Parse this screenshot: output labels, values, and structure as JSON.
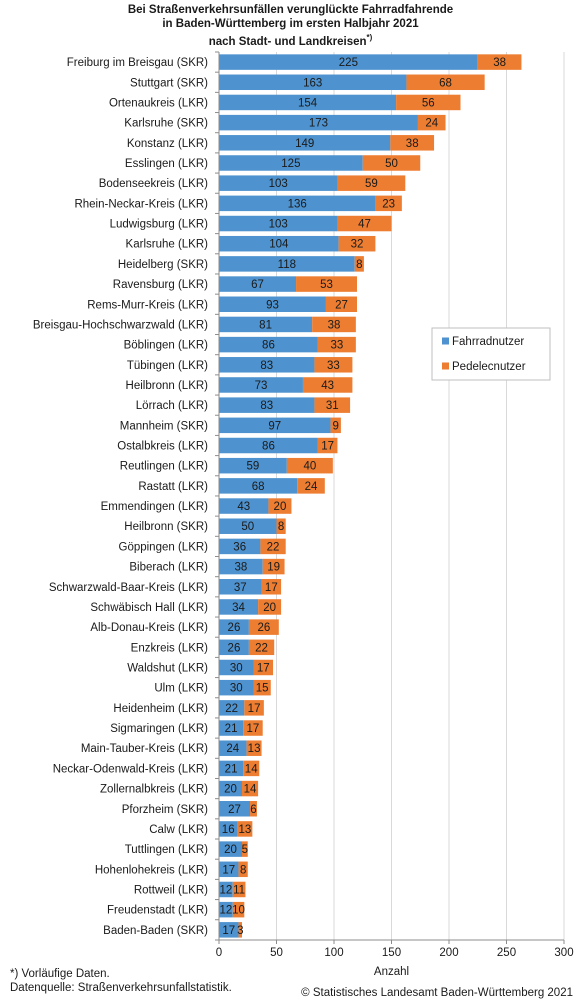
{
  "header": {
    "title_lines": [
      "Bei Straßenverkehrsunfällen verunglückte Fahrradfahrende",
      "in Baden-Württemberg im ersten Halbjahr 2021",
      "nach Stadt- und Landkreisen"
    ],
    "title_marker": "*)"
  },
  "footer": {
    "note": "*) Vorläufige Daten.",
    "source": "Datenquelle: Straßenverkehrsunfallstatistik.",
    "copyright": "© Statistisches Landesamt Baden-Württemberg 2021"
  },
  "colors": {
    "fahrrad": "#4e93cf",
    "pedelec": "#ed7d31",
    "grid": "#d9d9d9",
    "axis": "#8c8c8c",
    "text": "#1a1a1a"
  },
  "chart_data": {
    "type": "bar",
    "orientation": "horizontal",
    "stacked": true,
    "categories": [
      "Freiburg im Breisgau (SKR)",
      "Stuttgart (SKR)",
      "Ortenaukreis (LKR)",
      "Karlsruhe (SKR)",
      "Konstanz (LKR)",
      "Esslingen (LKR)",
      "Bodenseekreis (LKR)",
      "Rhein-Neckar-Kreis (LKR)",
      "Ludwigsburg (LKR)",
      "Karlsruhe (LKR)",
      "Heidelberg (SKR)",
      "Ravensburg (LKR)",
      "Rems-Murr-Kreis (LKR)",
      "Breisgau-Hochschwarzwald (LKR)",
      "Böblingen (LKR)",
      "Tübingen (LKR)",
      "Heilbronn (LKR)",
      "Lörrach (LKR)",
      "Mannheim (SKR)",
      "Ostalbkreis (LKR)",
      "Reutlingen (LKR)",
      "Rastatt (LKR)",
      "Emmendingen (LKR)",
      "Heilbronn (SKR)",
      "Göppingen (LKR)",
      "Biberach (LKR)",
      "Schwarzwald-Baar-Kreis (LKR)",
      "Schwäbisch Hall  (LKR)",
      "Alb-Donau-Kreis (LKR)",
      "Enzkreis (LKR)",
      "Waldshut (LKR)",
      "Ulm (LKR)",
      "Heidenheim (LKR)",
      "Sigmaringen (LKR)",
      "Main-Tauber-Kreis (LKR)",
      "Neckar-Odenwald-Kreis (LKR)",
      "Zollernalbkreis (LKR)",
      "Pforzheim (SKR)",
      "Calw (LKR)",
      "Tuttlingen (LKR)",
      "Hohenlohekreis (LKR)",
      "Rottweil (LKR)",
      "Freudenstadt (LKR)",
      "Baden-Baden (SKR)"
    ],
    "series": [
      {
        "name": "Fahrradnutzer",
        "values": [
          225,
          163,
          154,
          173,
          149,
          125,
          103,
          136,
          103,
          104,
          118,
          67,
          93,
          81,
          86,
          83,
          73,
          83,
          97,
          86,
          59,
          68,
          43,
          50,
          36,
          38,
          37,
          34,
          26,
          26,
          30,
          30,
          22,
          21,
          24,
          21,
          20,
          27,
          16,
          20,
          17,
          12,
          12,
          17
        ]
      },
      {
        "name": "Pedelecnutzer",
        "values": [
          38,
          68,
          56,
          24,
          38,
          50,
          59,
          23,
          47,
          32,
          8,
          53,
          27,
          38,
          33,
          33,
          43,
          31,
          9,
          17,
          40,
          24,
          20,
          8,
          22,
          19,
          17,
          20,
          26,
          22,
          17,
          15,
          17,
          17,
          13,
          14,
          14,
          6,
          13,
          5,
          8,
          11,
          10,
          3
        ]
      }
    ],
    "xlim": [
      0,
      300
    ],
    "xticks": [
      0,
      50,
      100,
      150,
      200,
      250,
      300
    ],
    "xlabel": "Anzahl",
    "ylabel": "",
    "grid": true,
    "legend": "right"
  }
}
